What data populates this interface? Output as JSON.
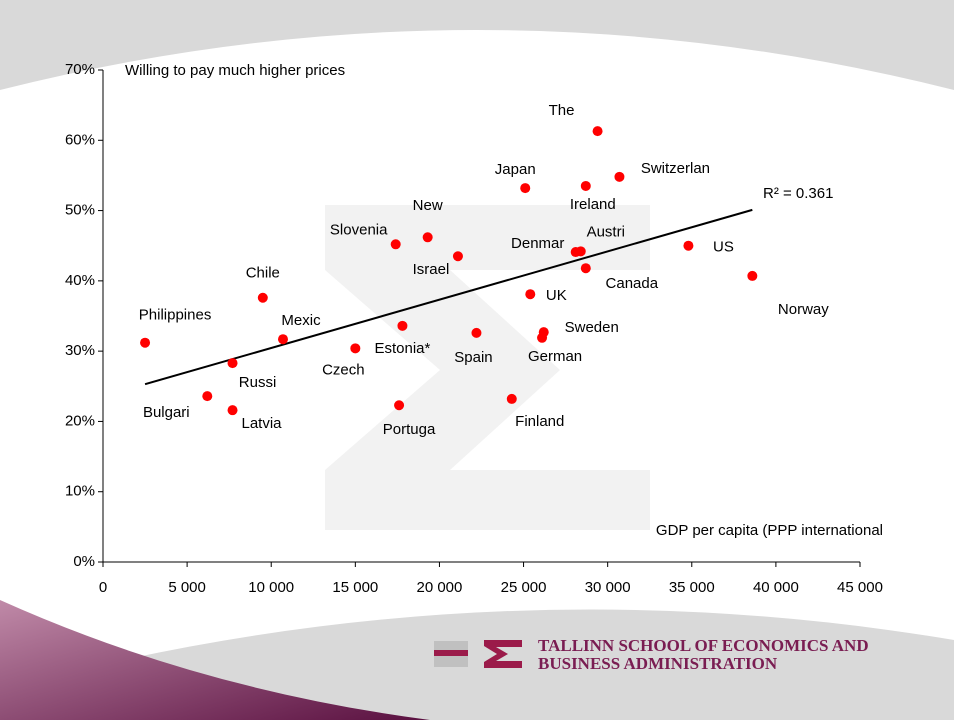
{
  "chart_data": {
    "type": "scatter",
    "y_label": "Willing to pay much higher prices",
    "x_label": "GDP per capita (PPP international",
    "annotation": "R² = 0.361",
    "color": "#ff0000",
    "xlim": [
      0,
      45000
    ],
    "ylim": [
      0,
      70
    ],
    "xticks": [
      0,
      {
        "value": 5000,
        "label": "5 000"
      },
      {
        "value": 10000,
        "label": "10 000"
      },
      {
        "value": 15000,
        "label": "15 000"
      },
      {
        "value": 20000,
        "label": "20 000"
      },
      {
        "value": 25000,
        "label": "25 000"
      },
      {
        "value": 30000,
        "label": "30 000"
      },
      {
        "value": 35000,
        "label": "35 000"
      },
      {
        "value": 40000,
        "label": "40 000"
      },
      {
        "value": 45000,
        "label": "45 000"
      }
    ],
    "yticks": [
      {
        "value": 0,
        "label": "0%"
      },
      {
        "value": 10,
        "label": "10%"
      },
      {
        "value": 20,
        "label": "20%"
      },
      {
        "value": 30,
        "label": "30%"
      },
      {
        "value": 40,
        "label": "40%"
      },
      {
        "value": 50,
        "label": "50%"
      },
      {
        "value": 60,
        "label": "60%"
      },
      {
        "value": 70,
        "label": "70%"
      }
    ],
    "labels": [
      "Philippines",
      "Bulgari",
      "Latvia",
      "Russi",
      "Chile",
      "Mexic",
      "Czech",
      "Estonia*",
      "Slovenia",
      "New",
      "Israel",
      "Portuga",
      "Spain",
      "Finland",
      "Japan",
      "UK",
      "Sweden",
      "German",
      "Denmar",
      "Austri",
      "Canada",
      "Ireland",
      "The",
      "Switzerlan",
      "US",
      "Norway"
    ],
    "x": [
      2500,
      6200,
      7700,
      7700,
      9500,
      10700,
      15000,
      17800,
      17400,
      19300,
      21100,
      17600,
      22200,
      24300,
      25100,
      25400,
      26200,
      26100,
      28100,
      28400,
      28700,
      28700,
      29400,
      30700,
      34800,
      38600
    ],
    "y": [
      31.2,
      23.6,
      21.6,
      28.3,
      37.6,
      31.7,
      30.4,
      33.6,
      45.2,
      46.2,
      43.5,
      22.3,
      32.6,
      23.2,
      53.2,
      38.1,
      32.7,
      31.9,
      44.1,
      44.2,
      41.8,
      53.5,
      61.3,
      54.8,
      45.0,
      40.7
    ],
    "trendline": {
      "x": [
        2500,
        38600
      ],
      "y": [
        25.3,
        50.1
      ],
      "color": "#000000"
    }
  },
  "footer": {
    "line1": "TALLINN SCHOOL OF ECONOMICS AND",
    "line2": "BUSINESS ADMINISTRATION"
  }
}
